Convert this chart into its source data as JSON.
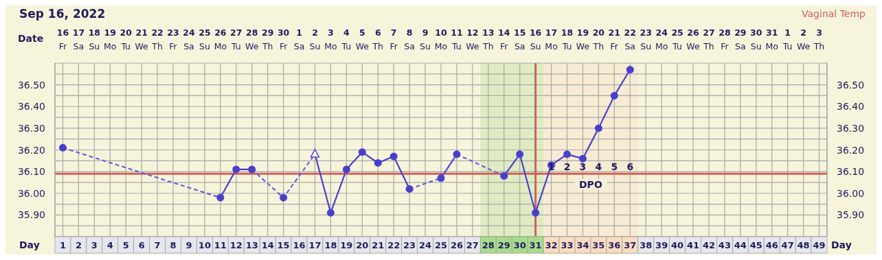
{
  "chart_data": {
    "type": "line",
    "title": "Sep 16, 2022",
    "xlabel": "Day",
    "x2label": "Date",
    "annotations": [
      "Vaginal Temp",
      "1",
      "2",
      "3",
      "4",
      "5",
      "6",
      "DPO"
    ],
    "xlim": [
      0.5,
      49.5
    ],
    "xticks": [
      1,
      2,
      3,
      4,
      5,
      6,
      7,
      8,
      9,
      10,
      11,
      12,
      13,
      14,
      15,
      16,
      17,
      18,
      19,
      20,
      21,
      22,
      23,
      24,
      25,
      26,
      27,
      28,
      29,
      30,
      31,
      32,
      33,
      34,
      35,
      36,
      37,
      38,
      39,
      40,
      41,
      42,
      43,
      44,
      45,
      46,
      47,
      48,
      49
    ],
    "x2lim": [
      "2022-09-15T12:00",
      "2022-11-03T12:00"
    ],
    "x2ticks": [
      {
        "value": "2022-09-16",
        "label": "16\nFr"
      },
      {
        "value": "2022-09-17",
        "label": "17\nSa"
      },
      {
        "value": "2022-09-18",
        "label": "18\nSu"
      },
      {
        "value": "2022-09-19",
        "label": "19\nMo"
      },
      {
        "value": "2022-09-20",
        "label": "20\nTu"
      },
      {
        "value": "2022-09-21",
        "label": "21\nWe"
      },
      {
        "value": "2022-09-22",
        "label": "22\nTh"
      },
      {
        "value": "2022-09-23",
        "label": "23\nFr"
      },
      {
        "value": "2022-09-24",
        "label": "24\nSa"
      },
      {
        "value": "2022-09-25",
        "label": "25\nSu"
      },
      {
        "value": "2022-09-26",
        "label": "26\nMo"
      },
      {
        "value": "2022-09-27",
        "label": "27\nTu"
      },
      {
        "value": "2022-09-28",
        "label": "28\nWe"
      },
      {
        "value": "2022-09-29",
        "label": "29\nTh"
      },
      {
        "value": "2022-09-30",
        "label": "30\nFr"
      },
      {
        "value": "2022-10-01",
        "label": "1\nSa"
      },
      {
        "value": "2022-10-02",
        "label": "2\nSu"
      },
      {
        "value": "2022-10-03",
        "label": "3\nMo"
      },
      {
        "value": "2022-10-04",
        "label": "4\nTu"
      },
      {
        "value": "2022-10-05",
        "label": "5\nWe"
      },
      {
        "value": "2022-10-06",
        "label": "6\nTh"
      },
      {
        "value": "2022-10-07",
        "label": "7\nFr"
      },
      {
        "value": "2022-10-08",
        "label": "8\nSa"
      },
      {
        "value": "2022-10-09",
        "label": "9\nSu"
      },
      {
        "value": "2022-10-10",
        "label": "10\nMo"
      },
      {
        "value": "2022-10-11",
        "label": "11\nTu"
      },
      {
        "value": "2022-10-12",
        "label": "12\nWe"
      },
      {
        "value": "2022-10-13",
        "label": "13\nTh"
      },
      {
        "value": "2022-10-14",
        "label": "14\nFr"
      },
      {
        "value": "2022-10-15",
        "label": "15\nSa"
      },
      {
        "value": "2022-10-16",
        "label": "16\nSu"
      },
      {
        "value": "2022-10-17",
        "label": "17\nMo"
      },
      {
        "value": "2022-10-18",
        "label": "18\nTu"
      },
      {
        "value": "2022-10-19",
        "label": "19\nWe"
      },
      {
        "value": "2022-10-20",
        "label": "20\nTh"
      },
      {
        "value": "2022-10-21",
        "label": "21\nFr"
      },
      {
        "value": "2022-10-22",
        "label": "22\nSa"
      },
      {
        "value": "2022-10-23",
        "label": "23\nSu"
      },
      {
        "value": "2022-10-24",
        "label": "24\nMo"
      },
      {
        "value": "2022-10-25",
        "label": "25\nTu"
      },
      {
        "value": "2022-10-26",
        "label": "26\nWe"
      },
      {
        "value": "2022-10-27",
        "label": "27\nTh"
      },
      {
        "value": "2022-10-28",
        "label": "28\nFr"
      },
      {
        "value": "2022-10-29",
        "label": "29\nSa"
      },
      {
        "value": "2022-10-30",
        "label": "30\nSu"
      },
      {
        "value": "2022-10-31",
        "label": "31\nMo"
      },
      {
        "value": "2022-11-01",
        "label": "1\nTu"
      },
      {
        "value": "2022-11-02",
        "label": "2\nWe"
      },
      {
        "value": "2022-11-03",
        "label": "3\nTh"
      }
    ],
    "ylim": [
      35.8,
      36.6
    ],
    "yticks": [
      {
        "value": 35.8,
        "label": null
      },
      {
        "value": 35.85,
        "label": null
      },
      {
        "value": 35.9,
        "label": "35.90"
      },
      {
        "value": 35.95,
        "label": null
      },
      {
        "value": 36.0,
        "label": "36.00"
      },
      {
        "value": 36.05,
        "label": null
      },
      {
        "value": 36.1,
        "label": "36.10"
      },
      {
        "value": 36.15,
        "label": null
      },
      {
        "value": 36.2,
        "label": "36.20"
      },
      {
        "value": 36.25,
        "label": null
      },
      {
        "value": 36.3,
        "label": "36.30"
      },
      {
        "value": 36.35,
        "label": null
      },
      {
        "value": 36.4,
        "label": "36.40"
      },
      {
        "value": 36.45,
        "label": null
      },
      {
        "value": 36.5,
        "label": "36.50"
      },
      {
        "value": 36.55,
        "label": null
      },
      {
        "value": 36.6,
        "label": null
      }
    ],
    "y2lim": [
      35.8,
      36.6
    ],
    "y2ticks": [
      {
        "value": 35.8,
        "label": null
      },
      {
        "value": 35.85,
        "label": null
      },
      {
        "value": 35.9,
        "label": "35.90"
      },
      {
        "value": 35.95,
        "label": null
      },
      {
        "value": 36.0,
        "label": "36.00"
      },
      {
        "value": 36.05,
        "label": null
      },
      {
        "value": 36.1,
        "label": "36.10"
      },
      {
        "value": 36.15,
        "label": null
      },
      {
        "value": 36.2,
        "label": "36.20"
      },
      {
        "value": 36.25,
        "label": null
      },
      {
        "value": 36.3,
        "label": "36.30"
      },
      {
        "value": 36.35,
        "label": null
      },
      {
        "value": 36.4,
        "label": "36.40"
      },
      {
        "value": 36.45,
        "label": null
      },
      {
        "value": 36.5,
        "label": "36.50"
      },
      {
        "value": 36.55,
        "label": null
      },
      {
        "value": 36.6,
        "label": null
      }
    ],
    "grid": true,
    "ref_lines": [
      {
        "axis": "y",
        "value": 36.09,
        "color": "#d0605a"
      },
      {
        "axis": "x",
        "value": 31,
        "color": "#d0605a"
      }
    ],
    "bands": [
      {
        "axis": "x",
        "from": 27.5,
        "to": 31.5,
        "color": "#a8dc8c"
      },
      {
        "axis": "x",
        "from": 31.5,
        "to": 37.5,
        "color": "#f9dcc0"
      }
    ],
    "series": [
      {
        "type": "line",
        "line_style": "solid",
        "marker": "none",
        "color": "#4a3fcc",
        "x": [
          11,
          12,
          13,
          14,
          17,
          18,
          19,
          20,
          21,
          22,
          23,
          24,
          25,
          26,
          27,
          29,
          30,
          31,
          32,
          33,
          34,
          35,
          36,
          37
        ],
        "values": [
          35.98,
          36.11,
          36.11,
          null,
          36.18,
          35.91,
          36.11,
          36.19,
          36.14,
          36.17,
          36.02,
          null,
          36.07,
          36.18,
          null,
          36.08,
          36.18,
          35.91,
          36.13,
          36.18,
          36.16,
          36.3,
          36.45,
          36.57
        ]
      },
      {
        "type": "line",
        "line_style": "dashed",
        "marker": "none",
        "color": "#6a60dc",
        "x": [
          1,
          11,
          12,
          13,
          15,
          17,
          18,
          23,
          25,
          26,
          29
        ],
        "values": [
          36.21,
          35.98,
          null,
          36.11,
          35.98,
          36.18,
          null,
          36.02,
          36.07,
          36.18,
          36.08
        ]
      },
      {
        "type": "scatter",
        "marker": "circle",
        "color": "#4a3fcc",
        "x": [
          1,
          11,
          12,
          13,
          15,
          18,
          19,
          20,
          21,
          22,
          23,
          25,
          26,
          29,
          30,
          31,
          32,
          33,
          34,
          35,
          36,
          37
        ],
        "values": [
          36.21,
          35.98,
          36.11,
          36.11,
          35.98,
          35.91,
          36.11,
          36.19,
          36.14,
          36.17,
          36.02,
          36.07,
          36.18,
          36.08,
          36.18,
          35.91,
          36.13,
          36.18,
          36.16,
          36.3,
          36.45,
          36.57
        ]
      },
      {
        "type": "scatter",
        "marker": "triangle",
        "color": "#4a3fcc",
        "x": [
          17
        ],
        "values": [
          36.18
        ]
      }
    ]
  }
}
